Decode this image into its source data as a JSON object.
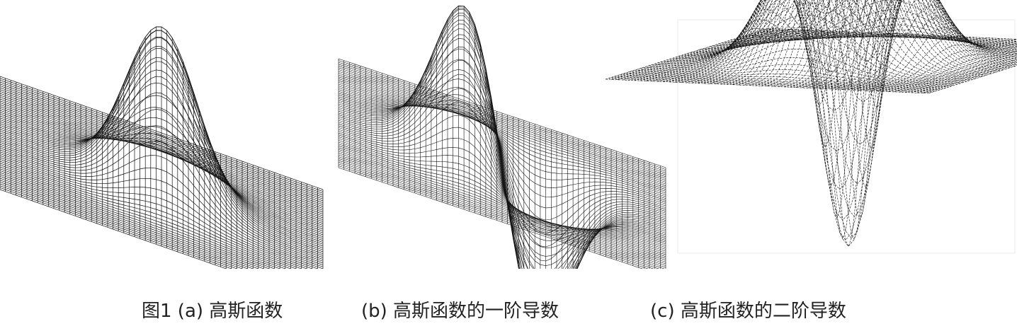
{
  "figure": {
    "panels": [
      {
        "id": "a",
        "surface": "gaussian"
      },
      {
        "id": "b",
        "surface": "gaussian-first-derivative"
      },
      {
        "id": "c",
        "surface": "gaussian-second-derivative"
      }
    ],
    "line_color": "#111111",
    "background": "#ffffff"
  },
  "captions": {
    "a": "图1 (a) 高斯函数",
    "b": "(b) 高斯函数的一阶导数",
    "c": "(c) 高斯函数的二阶导数"
  }
}
